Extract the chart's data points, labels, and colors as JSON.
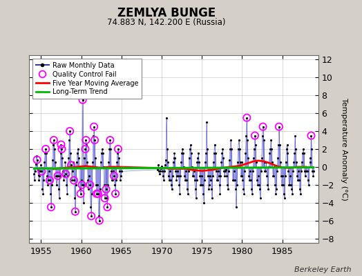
{
  "title": "ZEMLYA BUNGE",
  "subtitle": "74.883 N, 142.200 E (Russia)",
  "ylabel": "Temperature Anomaly (°C)",
  "watermark": "Berkeley Earth",
  "xlim": [
    1953.5,
    1989.5
  ],
  "ylim": [
    -8.5,
    12.5
  ],
  "yticks": [
    -8,
    -6,
    -4,
    -2,
    0,
    2,
    4,
    6,
    8,
    10,
    12
  ],
  "xticks": [
    1955,
    1960,
    1965,
    1970,
    1975,
    1980,
    1985
  ],
  "bg_color": "#d4d0c8",
  "plot_bg_color": "#ffffff",
  "raw_color": "#3333cc",
  "raw_dot_color": "#000000",
  "qc_color": "#ff00ff",
  "moving_avg_color": "#ff0000",
  "trend_color": "#00bb00",
  "raw_data": [
    [
      1954.083,
      -0.8
    ],
    [
      1954.167,
      -1.5
    ],
    [
      1954.25,
      -0.5
    ],
    [
      1954.333,
      0.3
    ],
    [
      1954.417,
      1.2
    ],
    [
      1954.5,
      0.8
    ],
    [
      1954.583,
      -0.3
    ],
    [
      1954.667,
      -0.9
    ],
    [
      1954.75,
      -1.5
    ],
    [
      1954.833,
      -1.0
    ],
    [
      1954.917,
      -0.5
    ],
    [
      1955.0,
      0.2
    ],
    [
      1955.083,
      -0.5
    ],
    [
      1955.167,
      -2.5
    ],
    [
      1955.25,
      -3.0
    ],
    [
      1955.333,
      -1.5
    ],
    [
      1955.417,
      0.5
    ],
    [
      1955.5,
      1.5
    ],
    [
      1955.583,
      2.0
    ],
    [
      1955.667,
      1.5
    ],
    [
      1955.75,
      -1.0
    ],
    [
      1955.833,
      -2.0
    ],
    [
      1955.917,
      -1.5
    ],
    [
      1956.0,
      -0.5
    ],
    [
      1956.083,
      -1.5
    ],
    [
      1956.167,
      -3.0
    ],
    [
      1956.25,
      -4.5
    ],
    [
      1956.333,
      -2.0
    ],
    [
      1956.417,
      0.8
    ],
    [
      1956.5,
      2.5
    ],
    [
      1956.583,
      3.0
    ],
    [
      1956.667,
      2.0
    ],
    [
      1956.75,
      0.5
    ],
    [
      1956.833,
      -1.0
    ],
    [
      1956.917,
      -2.0
    ],
    [
      1957.0,
      -1.0
    ],
    [
      1957.083,
      -1.0
    ],
    [
      1957.167,
      -2.5
    ],
    [
      1957.25,
      -3.5
    ],
    [
      1957.333,
      -1.0
    ],
    [
      1957.417,
      1.5
    ],
    [
      1957.5,
      2.5
    ],
    [
      1957.583,
      2.0
    ],
    [
      1957.667,
      1.0
    ],
    [
      1957.75,
      -0.5
    ],
    [
      1957.833,
      -1.5
    ],
    [
      1957.917,
      -1.0
    ],
    [
      1958.0,
      0.5
    ],
    [
      1958.083,
      -0.8
    ],
    [
      1958.167,
      -2.0
    ],
    [
      1958.25,
      -3.0
    ],
    [
      1958.333,
      -1.0
    ],
    [
      1958.417,
      1.0
    ],
    [
      1958.5,
      3.0
    ],
    [
      1958.583,
      4.0
    ],
    [
      1958.667,
      1.5
    ],
    [
      1958.75,
      0.2
    ],
    [
      1958.833,
      -1.5
    ],
    [
      1958.917,
      -0.5
    ],
    [
      1959.0,
      0.5
    ],
    [
      1959.083,
      -1.5
    ],
    [
      1959.167,
      -3.5
    ],
    [
      1959.25,
      -5.0
    ],
    [
      1959.333,
      -2.0
    ],
    [
      1959.417,
      0.5
    ],
    [
      1959.5,
      1.5
    ],
    [
      1959.583,
      2.0
    ],
    [
      1959.667,
      1.0
    ],
    [
      1959.75,
      0.0
    ],
    [
      1959.833,
      -2.5
    ],
    [
      1959.917,
      -3.0
    ],
    [
      1960.0,
      -1.5
    ],
    [
      1960.083,
      -2.0
    ],
    [
      1960.167,
      7.5
    ],
    [
      1960.25,
      -4.0
    ],
    [
      1960.333,
      -2.0
    ],
    [
      1960.417,
      1.0
    ],
    [
      1960.5,
      2.0
    ],
    [
      1960.583,
      3.0
    ],
    [
      1960.667,
      2.5
    ],
    [
      1960.75,
      0.5
    ],
    [
      1960.833,
      -1.5
    ],
    [
      1960.917,
      -2.5
    ],
    [
      1961.0,
      -1.0
    ],
    [
      1961.083,
      -2.0
    ],
    [
      1961.167,
      -4.5
    ],
    [
      1961.25,
      -5.5
    ],
    [
      1961.333,
      -3.0
    ],
    [
      1961.417,
      0.5
    ],
    [
      1961.5,
      3.5
    ],
    [
      1961.583,
      4.5
    ],
    [
      1961.667,
      3.0
    ],
    [
      1961.75,
      1.0
    ],
    [
      1961.833,
      -2.0
    ],
    [
      1961.917,
      -3.0
    ],
    [
      1962.0,
      -2.0
    ],
    [
      1962.083,
      -3.0
    ],
    [
      1962.167,
      -5.5
    ],
    [
      1962.25,
      -6.0
    ],
    [
      1962.333,
      -2.5
    ],
    [
      1962.417,
      0.5
    ],
    [
      1962.5,
      1.5
    ],
    [
      1962.583,
      2.0
    ],
    [
      1962.667,
      1.5
    ],
    [
      1962.75,
      0.0
    ],
    [
      1962.833,
      -2.0
    ],
    [
      1962.917,
      -3.5
    ],
    [
      1963.0,
      -2.0
    ],
    [
      1963.083,
      -2.5
    ],
    [
      1963.167,
      -3.5
    ],
    [
      1963.25,
      -4.5
    ],
    [
      1963.333,
      -2.0
    ],
    [
      1963.417,
      0.5
    ],
    [
      1963.5,
      2.0
    ],
    [
      1963.583,
      3.0
    ],
    [
      1963.667,
      2.0
    ],
    [
      1963.75,
      -0.5
    ],
    [
      1963.833,
      -1.5
    ],
    [
      1963.917,
      -1.5
    ],
    [
      1964.0,
      -0.5
    ],
    [
      1964.083,
      -1.0
    ],
    [
      1964.167,
      -2.0
    ],
    [
      1964.25,
      -3.0
    ],
    [
      1964.333,
      -1.5
    ],
    [
      1964.417,
      0.5
    ],
    [
      1964.5,
      1.5
    ],
    [
      1964.583,
      2.0
    ],
    [
      1964.667,
      1.0
    ],
    [
      1964.75,
      -0.5
    ],
    [
      1964.833,
      -1.5
    ],
    [
      1964.917,
      -1.0
    ],
    [
      1965.0,
      -0.5
    ],
    [
      1969.5,
      -0.3
    ],
    [
      1969.583,
      0.2
    ],
    [
      1969.667,
      -0.5
    ],
    [
      1969.75,
      -0.8
    ],
    [
      1969.833,
      -0.5
    ],
    [
      1969.917,
      -0.2
    ],
    [
      1970.0,
      0.1
    ],
    [
      1970.083,
      -0.5
    ],
    [
      1970.167,
      -1.0
    ],
    [
      1970.25,
      -1.5
    ],
    [
      1970.333,
      -0.5
    ],
    [
      1970.417,
      0.2
    ],
    [
      1970.5,
      0.8
    ],
    [
      1970.583,
      5.5
    ],
    [
      1970.667,
      2.0
    ],
    [
      1970.75,
      0.5
    ],
    [
      1970.833,
      -1.0
    ],
    [
      1970.917,
      -1.5
    ],
    [
      1971.0,
      -0.5
    ],
    [
      1971.083,
      -1.5
    ],
    [
      1971.167,
      -2.0
    ],
    [
      1971.25,
      -2.5
    ],
    [
      1971.333,
      -1.0
    ],
    [
      1971.417,
      0.5
    ],
    [
      1971.5,
      1.0
    ],
    [
      1971.583,
      1.5
    ],
    [
      1971.667,
      1.0
    ],
    [
      1971.75,
      -0.5
    ],
    [
      1971.833,
      -1.5
    ],
    [
      1971.917,
      -1.0
    ],
    [
      1972.0,
      -0.5
    ],
    [
      1972.083,
      -1.0
    ],
    [
      1972.167,
      -2.0
    ],
    [
      1972.25,
      -3.0
    ],
    [
      1972.333,
      -1.0
    ],
    [
      1972.417,
      0.5
    ],
    [
      1972.5,
      1.5
    ],
    [
      1972.583,
      2.0
    ],
    [
      1972.667,
      1.5
    ],
    [
      1972.75,
      0.0
    ],
    [
      1972.833,
      -1.0
    ],
    [
      1972.917,
      -1.5
    ],
    [
      1973.0,
      -0.5
    ],
    [
      1973.083,
      -1.5
    ],
    [
      1973.167,
      -2.5
    ],
    [
      1973.25,
      -3.0
    ],
    [
      1973.333,
      -0.5
    ],
    [
      1973.417,
      1.0
    ],
    [
      1973.5,
      2.0
    ],
    [
      1973.583,
      2.5
    ],
    [
      1973.667,
      1.5
    ],
    [
      1973.75,
      0.0
    ],
    [
      1973.833,
      -1.0
    ],
    [
      1973.917,
      -1.0
    ],
    [
      1974.0,
      -0.5
    ],
    [
      1974.083,
      -1.5
    ],
    [
      1974.167,
      -2.5
    ],
    [
      1974.25,
      -3.5
    ],
    [
      1974.333,
      -1.5
    ],
    [
      1974.417,
      0.5
    ],
    [
      1974.5,
      1.0
    ],
    [
      1974.583,
      1.5
    ],
    [
      1974.667,
      0.5
    ],
    [
      1974.75,
      -1.0
    ],
    [
      1974.833,
      -2.0
    ],
    [
      1974.917,
      -2.0
    ],
    [
      1975.0,
      -1.0
    ],
    [
      1975.083,
      -2.0
    ],
    [
      1975.167,
      -3.0
    ],
    [
      1975.25,
      -4.0
    ],
    [
      1975.333,
      -1.5
    ],
    [
      1975.417,
      0.5
    ],
    [
      1975.5,
      1.5
    ],
    [
      1975.583,
      5.0
    ],
    [
      1975.667,
      2.0
    ],
    [
      1975.75,
      -1.0
    ],
    [
      1975.833,
      -2.5
    ],
    [
      1975.917,
      -2.0
    ],
    [
      1976.0,
      -1.0
    ],
    [
      1976.083,
      -1.5
    ],
    [
      1976.167,
      -2.5
    ],
    [
      1976.25,
      -3.5
    ],
    [
      1976.333,
      -1.0
    ],
    [
      1976.417,
      0.5
    ],
    [
      1976.5,
      1.5
    ],
    [
      1976.583,
      2.5
    ],
    [
      1976.667,
      1.5
    ],
    [
      1976.75,
      -0.5
    ],
    [
      1976.833,
      -1.5
    ],
    [
      1976.917,
      -1.5
    ],
    [
      1977.0,
      -0.5
    ],
    [
      1977.083,
      -1.0
    ],
    [
      1977.167,
      -2.0
    ],
    [
      1977.25,
      -3.0
    ],
    [
      1977.333,
      -1.0
    ],
    [
      1977.417,
      0.5
    ],
    [
      1977.5,
      1.5
    ],
    [
      1977.583,
      2.0
    ],
    [
      1977.667,
      1.0
    ],
    [
      1977.75,
      -0.5
    ],
    [
      1977.833,
      -1.0
    ],
    [
      1977.917,
      -0.5
    ],
    [
      1978.0,
      -0.3
    ],
    [
      1978.083,
      -1.0
    ],
    [
      1978.167,
      -2.0
    ],
    [
      1978.25,
      -2.5
    ],
    [
      1978.333,
      -0.5
    ],
    [
      1978.417,
      0.8
    ],
    [
      1978.5,
      2.0
    ],
    [
      1978.583,
      3.0
    ],
    [
      1978.667,
      2.0
    ],
    [
      1978.75,
      0.0
    ],
    [
      1978.833,
      -1.5
    ],
    [
      1978.917,
      -1.5
    ],
    [
      1979.0,
      -0.5
    ],
    [
      1979.083,
      -1.5
    ],
    [
      1979.167,
      -2.5
    ],
    [
      1979.25,
      -4.5
    ],
    [
      1979.333,
      -2.0
    ],
    [
      1979.417,
      0.5
    ],
    [
      1979.5,
      2.0
    ],
    [
      1979.583,
      3.0
    ],
    [
      1979.667,
      2.0
    ],
    [
      1979.75,
      0.5
    ],
    [
      1979.833,
      -1.0
    ],
    [
      1979.917,
      -1.0
    ],
    [
      1980.0,
      0.5
    ],
    [
      1980.083,
      -1.5
    ],
    [
      1980.167,
      -2.5
    ],
    [
      1980.25,
      -3.0
    ],
    [
      1980.333,
      -0.5
    ],
    [
      1980.417,
      1.5
    ],
    [
      1980.5,
      3.5
    ],
    [
      1980.583,
      5.5
    ],
    [
      1980.667,
      3.0
    ],
    [
      1980.75,
      1.0
    ],
    [
      1980.833,
      -1.0
    ],
    [
      1980.917,
      -1.5
    ],
    [
      1981.0,
      -0.5
    ],
    [
      1981.083,
      -1.5
    ],
    [
      1981.167,
      -2.5
    ],
    [
      1981.25,
      -3.0
    ],
    [
      1981.333,
      -0.5
    ],
    [
      1981.417,
      1.0
    ],
    [
      1981.5,
      2.0
    ],
    [
      1981.583,
      3.5
    ],
    [
      1981.667,
      2.5
    ],
    [
      1981.75,
      0.5
    ],
    [
      1981.833,
      -1.5
    ],
    [
      1981.917,
      -2.0
    ],
    [
      1982.0,
      -1.0
    ],
    [
      1982.083,
      -2.0
    ],
    [
      1982.167,
      -2.5
    ],
    [
      1982.25,
      -3.5
    ],
    [
      1982.333,
      -0.5
    ],
    [
      1982.417,
      1.0
    ],
    [
      1982.5,
      3.5
    ],
    [
      1982.583,
      4.5
    ],
    [
      1982.667,
      3.0
    ],
    [
      1982.75,
      0.5
    ],
    [
      1982.833,
      -0.5
    ],
    [
      1982.917,
      -0.5
    ],
    [
      1983.0,
      0.5
    ],
    [
      1983.083,
      -1.0
    ],
    [
      1983.167,
      -2.0
    ],
    [
      1983.25,
      -2.5
    ],
    [
      1983.333,
      0.0
    ],
    [
      1983.417,
      1.5
    ],
    [
      1983.5,
      2.0
    ],
    [
      1983.583,
      3.0
    ],
    [
      1983.667,
      2.0
    ],
    [
      1983.75,
      0.5
    ],
    [
      1983.833,
      -1.0
    ],
    [
      1983.917,
      -1.0
    ],
    [
      1984.0,
      0.0
    ],
    [
      1984.083,
      -2.0
    ],
    [
      1984.167,
      -3.0
    ],
    [
      1984.25,
      -2.5
    ],
    [
      1984.333,
      -0.5
    ],
    [
      1984.417,
      1.0
    ],
    [
      1984.5,
      2.5
    ],
    [
      1984.583,
      4.5
    ],
    [
      1984.667,
      2.5
    ],
    [
      1984.75,
      0.5
    ],
    [
      1984.833,
      -1.0
    ],
    [
      1984.917,
      -2.0
    ],
    [
      1985.0,
      -1.0
    ],
    [
      1985.083,
      -2.0
    ],
    [
      1985.167,
      -3.0
    ],
    [
      1985.25,
      -3.5
    ],
    [
      1985.333,
      -1.0
    ],
    [
      1985.417,
      0.5
    ],
    [
      1985.5,
      2.0
    ],
    [
      1985.583,
      2.5
    ],
    [
      1985.667,
      1.5
    ],
    [
      1985.75,
      -0.5
    ],
    [
      1985.833,
      -2.0
    ],
    [
      1985.917,
      -2.0
    ],
    [
      1986.0,
      -1.0
    ],
    [
      1986.083,
      -2.0
    ],
    [
      1986.167,
      -2.5
    ],
    [
      1986.25,
      -3.0
    ],
    [
      1986.333,
      -0.5
    ],
    [
      1986.417,
      0.5
    ],
    [
      1986.5,
      1.5
    ],
    [
      1986.583,
      3.5
    ],
    [
      1986.667,
      2.0
    ],
    [
      1986.75,
      0.5
    ],
    [
      1986.833,
      -1.0
    ],
    [
      1986.917,
      -1.5
    ],
    [
      1987.0,
      -0.5
    ],
    [
      1987.083,
      -1.5
    ],
    [
      1987.167,
      -2.5
    ],
    [
      1987.25,
      -3.0
    ],
    [
      1987.333,
      -0.5
    ],
    [
      1987.417,
      0.5
    ],
    [
      1987.5,
      1.5
    ],
    [
      1987.583,
      2.0
    ],
    [
      1987.667,
      1.5
    ],
    [
      1987.75,
      -0.5
    ],
    [
      1987.833,
      -1.0
    ],
    [
      1987.917,
      -0.5
    ],
    [
      1988.0,
      0.0
    ],
    [
      1988.083,
      -0.5
    ],
    [
      1988.167,
      -1.5
    ],
    [
      1988.25,
      -2.0
    ],
    [
      1988.333,
      0.0
    ],
    [
      1988.417,
      0.5
    ],
    [
      1988.5,
      1.0
    ],
    [
      1988.583,
      3.5
    ],
    [
      1988.667,
      2.0
    ],
    [
      1988.75,
      -0.5
    ],
    [
      1988.833,
      -1.0
    ],
    [
      1988.917,
      -0.5
    ]
  ],
  "qc_fail_points": [
    [
      1954.5,
      0.8
    ],
    [
      1955.083,
      -0.5
    ],
    [
      1955.583,
      2.0
    ],
    [
      1956.083,
      -1.5
    ],
    [
      1956.25,
      -4.5
    ],
    [
      1956.583,
      3.0
    ],
    [
      1957.083,
      -1.0
    ],
    [
      1957.5,
      2.5
    ],
    [
      1957.583,
      2.0
    ],
    [
      1958.083,
      -0.8
    ],
    [
      1958.583,
      4.0
    ],
    [
      1958.75,
      0.2
    ],
    [
      1959.083,
      -1.5
    ],
    [
      1959.25,
      -5.0
    ],
    [
      1959.917,
      -3.0
    ],
    [
      1960.083,
      -2.0
    ],
    [
      1960.167,
      7.5
    ],
    [
      1960.5,
      2.0
    ],
    [
      1960.583,
      3.0
    ],
    [
      1961.083,
      -2.0
    ],
    [
      1961.25,
      -5.5
    ],
    [
      1961.583,
      4.5
    ],
    [
      1961.667,
      3.0
    ],
    [
      1961.917,
      -3.0
    ],
    [
      1962.083,
      -3.0
    ],
    [
      1962.25,
      -6.0
    ],
    [
      1962.917,
      -3.5
    ],
    [
      1963.083,
      -2.5
    ],
    [
      1963.25,
      -4.5
    ],
    [
      1963.583,
      3.0
    ],
    [
      1964.083,
      -1.0
    ],
    [
      1964.25,
      -3.0
    ],
    [
      1964.583,
      2.0
    ],
    [
      1980.583,
      5.5
    ],
    [
      1981.583,
      3.5
    ],
    [
      1982.583,
      4.5
    ],
    [
      1984.583,
      4.5
    ],
    [
      1988.583,
      3.5
    ]
  ],
  "moving_avg": [
    [
      1956.5,
      -0.25
    ],
    [
      1957.0,
      -0.2
    ],
    [
      1957.5,
      -0.15
    ],
    [
      1958.0,
      -0.1
    ],
    [
      1958.5,
      -0.05
    ],
    [
      1959.0,
      -0.05
    ],
    [
      1959.5,
      0.0
    ],
    [
      1960.0,
      0.05
    ],
    [
      1960.5,
      0.1
    ],
    [
      1961.0,
      0.05
    ],
    [
      1961.5,
      0.0
    ],
    [
      1962.0,
      -0.05
    ],
    [
      1962.5,
      -0.1
    ],
    [
      1963.0,
      -0.05
    ],
    [
      1963.5,
      0.0
    ],
    [
      1964.0,
      0.0
    ],
    [
      1964.5,
      0.0
    ],
    [
      1970.5,
      -0.15
    ],
    [
      1971.0,
      -0.2
    ],
    [
      1971.5,
      -0.2
    ],
    [
      1972.0,
      -0.2
    ],
    [
      1972.5,
      -0.2
    ],
    [
      1973.0,
      -0.2
    ],
    [
      1973.5,
      -0.3
    ],
    [
      1974.0,
      -0.35
    ],
    [
      1974.5,
      -0.4
    ],
    [
      1975.0,
      -0.45
    ],
    [
      1975.5,
      -0.4
    ],
    [
      1976.0,
      -0.35
    ],
    [
      1976.5,
      -0.3
    ],
    [
      1977.0,
      -0.2
    ],
    [
      1977.5,
      -0.1
    ],
    [
      1978.0,
      -0.05
    ],
    [
      1978.5,
      0.0
    ],
    [
      1979.0,
      0.05
    ],
    [
      1979.5,
      0.1
    ],
    [
      1980.0,
      0.2
    ],
    [
      1980.5,
      0.35
    ],
    [
      1981.0,
      0.5
    ],
    [
      1981.5,
      0.65
    ],
    [
      1982.0,
      0.7
    ],
    [
      1982.5,
      0.65
    ],
    [
      1983.0,
      0.55
    ],
    [
      1983.5,
      0.4
    ],
    [
      1984.0,
      0.2
    ],
    [
      1984.5,
      0.05
    ],
    [
      1985.0,
      -0.05
    ],
    [
      1985.5,
      -0.1
    ],
    [
      1986.0,
      -0.1
    ],
    [
      1986.5,
      -0.05
    ],
    [
      1987.0,
      0.0
    ],
    [
      1987.5,
      0.0
    ],
    [
      1988.0,
      0.0
    ]
  ],
  "trend_x": [
    1954.0,
    1989.0
  ],
  "trend_y": [
    -0.18,
    -0.05
  ]
}
